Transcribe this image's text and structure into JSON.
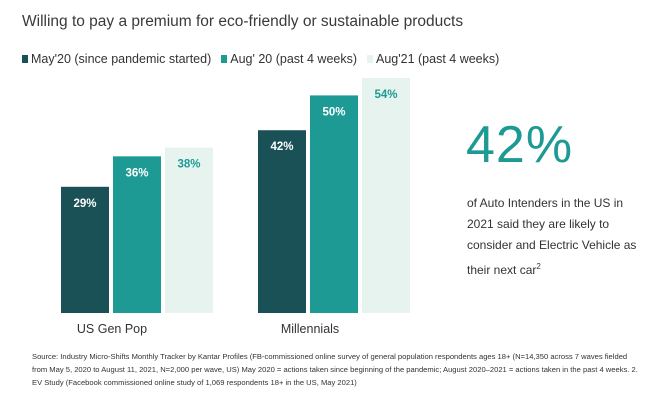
{
  "chart_data": {
    "type": "bar",
    "title": "Willing to pay a premium for eco-friendly or sustainable products",
    "categories": [
      "US Gen Pop",
      "Millennials"
    ],
    "series": [
      {
        "name": "May'20 (since pandemic started)",
        "values": [
          29,
          42
        ],
        "labels": [
          "29%",
          "42%"
        ],
        "color": "#1a5157",
        "label_color": "#ffffff"
      },
      {
        "name": "Aug' 20 (past 4 weeks)",
        "values": [
          36,
          50
        ],
        "labels": [
          "36%",
          "50%"
        ],
        "color": "#1d9a94",
        "label_color": "#ffffff"
      },
      {
        "name": "Aug'21 (past 4 weeks)",
        "values": [
          38,
          54
        ],
        "labels": [
          "38%",
          "54%"
        ],
        "color": "#e6f3ef",
        "label_color": "#1d9a94"
      }
    ],
    "ylim": [
      0,
      54
    ],
    "xlabel": "",
    "ylabel": "",
    "grid": false,
    "legend_position": "top-left"
  },
  "callout": {
    "value": "42%",
    "text": "of Auto Intenders in the US in 2021 said they are likely to consider and Electric Vehicle as their next car",
    "footnote_marker": "2"
  },
  "source": "Source: Industry Micro-Shifts Monthly Tracker by Kantar Profiles (FB-commissioned online survey of general population respondents ages 18+ (N=14,350 across 7 waves fielded from May 5, 2020 to August 11, 2021, N=2,000 per wave, US) May 2020 = actions taken since beginning of the pandemic; August 2020–2021 = actions taken in the past 4 weeks. 2. EV Study (Facebook commissioned online study of 1,069 respondents 18+ in the US, May 2021)"
}
